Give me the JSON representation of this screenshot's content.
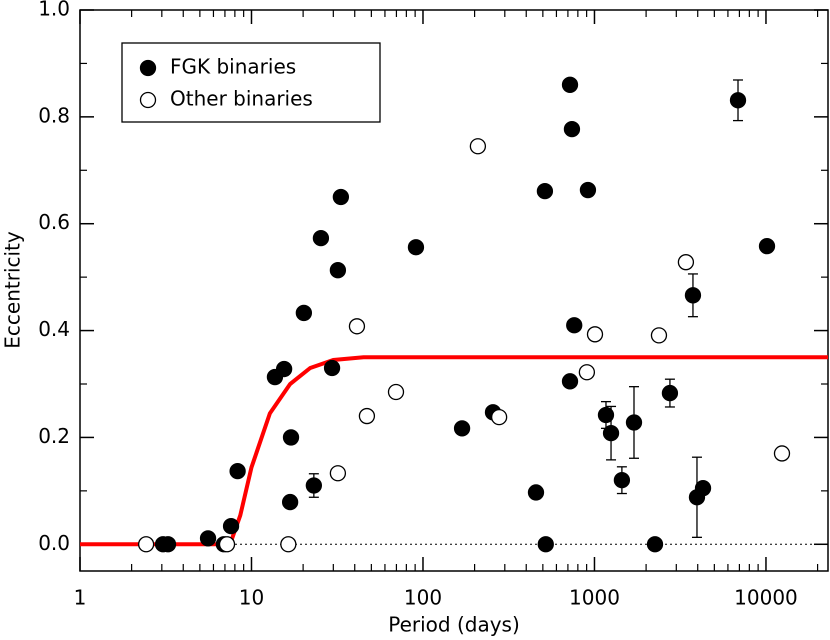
{
  "chart_data": {
    "type": "scatter",
    "x_label": "Period (days)",
    "y_label": "Eccentricity",
    "log_x": true,
    "xlim": [
      1,
      23000
    ],
    "ylim": [
      -0.05,
      1.0
    ],
    "xticks": [
      1,
      10,
      100,
      1000,
      10000
    ],
    "xminorticks": [
      2,
      3,
      4,
      5,
      6,
      7,
      8,
      9,
      20,
      30,
      40,
      50,
      60,
      70,
      80,
      90,
      200,
      300,
      400,
      500,
      600,
      700,
      800,
      900,
      2000,
      3000,
      4000,
      5000,
      6000,
      7000,
      8000,
      9000,
      20000
    ],
    "yticks": [
      {
        "value": 0,
        "label": "0.0"
      },
      {
        "value": 0.2,
        "label": "0.2"
      },
      {
        "value": 0.4,
        "label": "0.4"
      },
      {
        "value": 0.6,
        "label": "0.6"
      },
      {
        "value": 0.8,
        "label": "0.8"
      },
      {
        "value": 1.0,
        "label": "1.0"
      }
    ],
    "yminorticks": [
      0.1,
      0.3,
      0.5,
      0.7,
      0.9
    ],
    "hline": 0,
    "legend": "upper left",
    "series": [
      {
        "name": "FGK binaries",
        "color": "#000000",
        "filled": true,
        "x": [
          3.05,
          3.26,
          5.58,
          6.9,
          7.6,
          8.3,
          13.7,
          15.5,
          16.8,
          17,
          20.2,
          23.1,
          25.4,
          29.5,
          31.9,
          33.2,
          91,
          169,
          256,
          456,
          514,
          520,
          720,
          720,
          739,
          762,
          916,
          1167,
          1249,
          1445,
          1700,
          2254,
          2754,
          3752,
          3960,
          4295,
          6870,
          10140
        ],
        "values": [
          0,
          0,
          0.011,
          0,
          0.034,
          0.137,
          0.313,
          0.328,
          0.079,
          0.2,
          0.433,
          0.11,
          0.573,
          0.33,
          0.513,
          0.65,
          0.556,
          0.217,
          0.247,
          0.097,
          0.661,
          0,
          0.86,
          0.305,
          0.777,
          0.41,
          0.663,
          0.242,
          0.208,
          0.12,
          0.228,
          0,
          0.283,
          0.466,
          0.088,
          0.105,
          0.831,
          0.558
        ],
        "errors": [
          null,
          null,
          null,
          null,
          null,
          null,
          null,
          null,
          null,
          null,
          null,
          0.022,
          null,
          null,
          null,
          null,
          null,
          null,
          null,
          null,
          null,
          null,
          null,
          null,
          null,
          null,
          null,
          0.025,
          0.05,
          0.025,
          0.067,
          null,
          0.026,
          0.04,
          0.075,
          null,
          0.038,
          null
        ]
      },
      {
        "name": "Other binaries",
        "color": "#000000",
        "filled": false,
        "x": [
          2.43,
          7.2,
          16.4,
          31.9,
          41.2,
          47.1,
          69.6,
          209,
          278,
          903,
          1007,
          2377,
          3413,
          12400
        ],
        "values": [
          0,
          0,
          0,
          0.133,
          0.408,
          0.24,
          0.285,
          0.745,
          0.238,
          0.322,
          0.393,
          0.391,
          0.528,
          0.17
        ]
      }
    ],
    "curve": {
      "color": "#ff0000",
      "x": [
        1,
        7.5,
        8.6,
        10,
        12.8,
        16.8,
        22,
        30,
        45,
        23000
      ],
      "y": [
        0,
        0,
        0.054,
        0.144,
        0.245,
        0.3,
        0.33,
        0.345,
        0.35,
        0.35
      ]
    }
  }
}
